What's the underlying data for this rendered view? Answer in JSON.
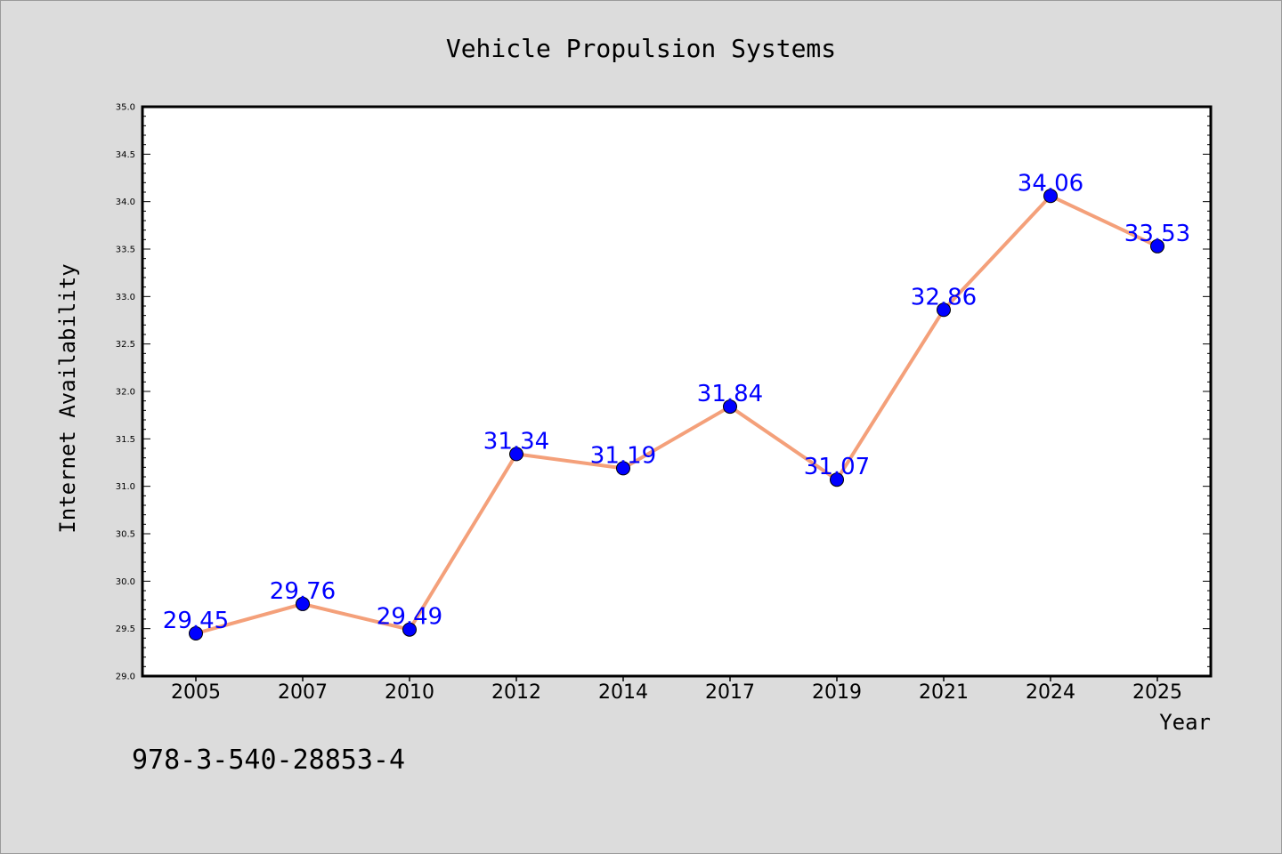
{
  "chart_data": {
    "type": "line",
    "title": "Vehicle Propulsion Systems",
    "xlabel": "Year",
    "ylabel": "Internet Availability",
    "categories": [
      "2005",
      "2007",
      "2010",
      "2012",
      "2014",
      "2017",
      "2019",
      "2021",
      "2024",
      "2025"
    ],
    "series": [
      {
        "values": [
          29.45,
          29.76,
          29.49,
          31.34,
          31.19,
          31.84,
          31.07,
          32.86,
          34.06,
          33.53
        ]
      }
    ],
    "data_labels": [
      "29.45",
      "29.76",
      "29.49",
      "31.34",
      "31.19",
      "31.84",
      "31.07",
      "32.86",
      "34.06",
      "33.53"
    ],
    "ylim": [
      29.0,
      35.0
    ],
    "yticks": [
      "29.0",
      "29.5",
      "30.0",
      "30.5",
      "31.0",
      "31.5",
      "32.0",
      "32.5",
      "33.0",
      "33.5",
      "34.0",
      "34.5",
      "35.0"
    ],
    "grid": false,
    "legend": "none",
    "colors": {
      "line": "#f4a07a",
      "marker": "#0000ff",
      "labels": "#0000ff",
      "background": "#dcdcdc",
      "plot_background": "#ffffff"
    }
  },
  "annotation": "978-3-540-28853-4"
}
